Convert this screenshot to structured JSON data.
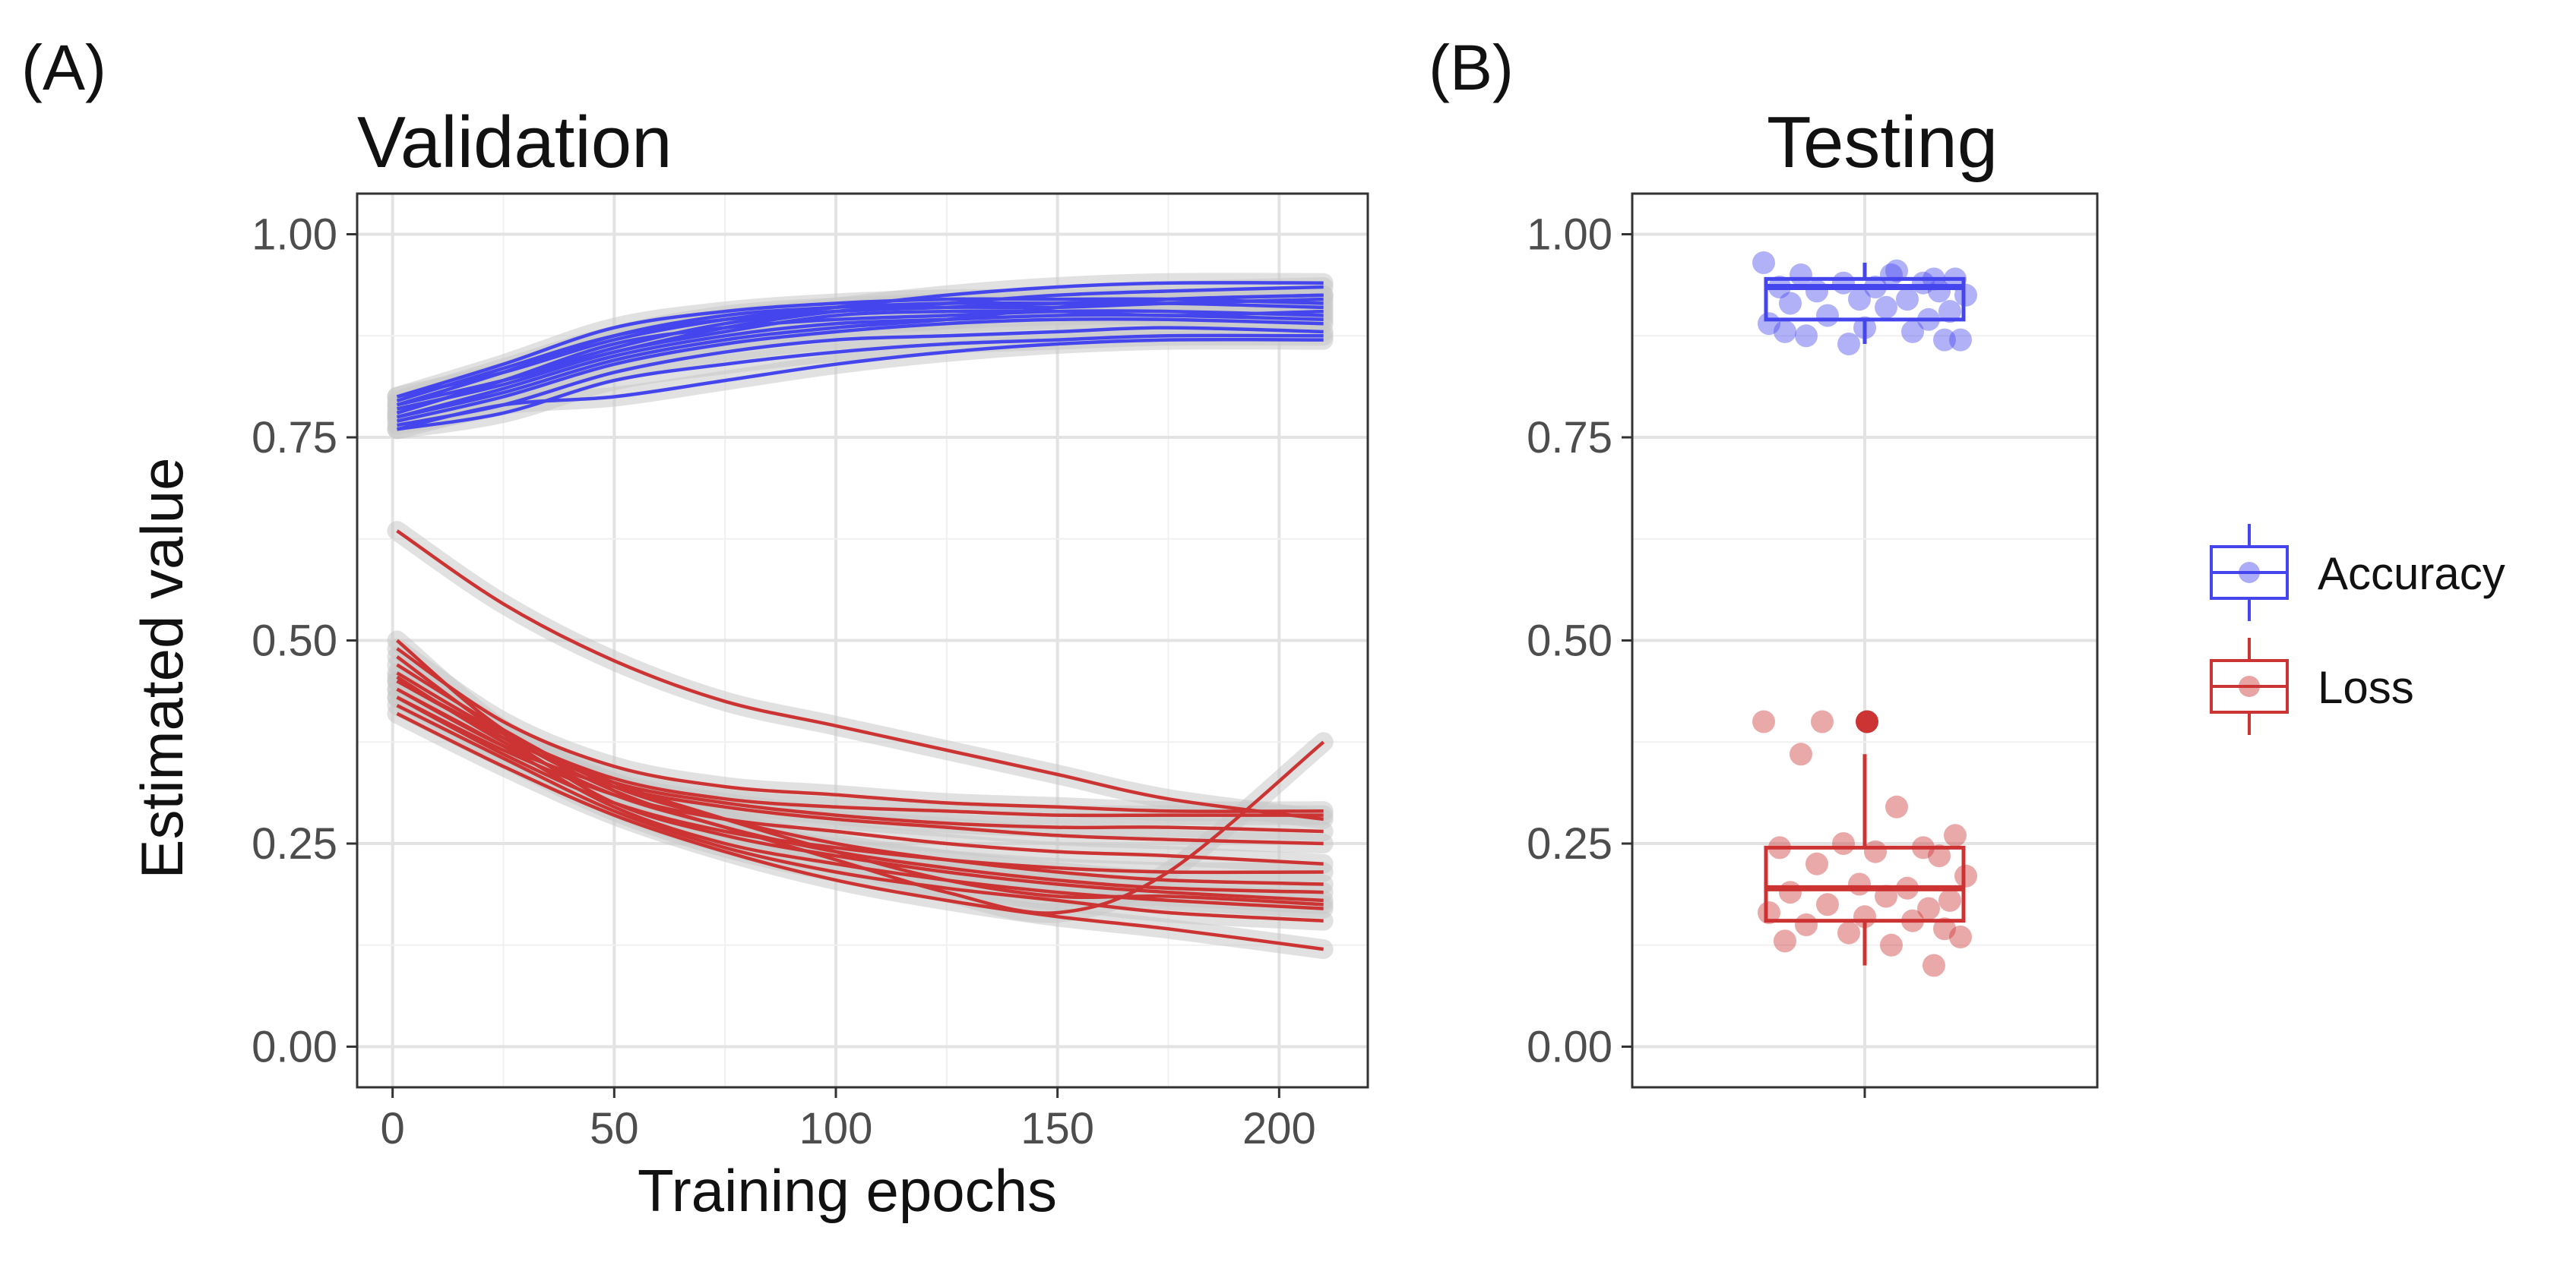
{
  "chart_data": [
    {
      "panel": "(A)",
      "type": "line",
      "title": "Validation",
      "xlabel": "Training epochs",
      "ylabel": "Estimated value",
      "xlim": [
        -8,
        220
      ],
      "ylim": [
        -0.05,
        1.05
      ],
      "x_ticks": [
        "0",
        "50",
        "100",
        "150",
        "200"
      ],
      "y_ticks": [
        "0.00",
        "0.25",
        "0.50",
        "0.75",
        "1.00"
      ],
      "grid": true,
      "x": [
        1,
        25,
        50,
        75,
        100,
        125,
        150,
        175,
        210
      ],
      "series": [
        {
          "group": "Accuracy",
          "values": [
            0.8,
            0.84,
            0.885,
            0.905,
            0.915,
            0.92,
            0.92,
            0.92,
            0.915
          ]
        },
        {
          "group": "Accuracy",
          "values": [
            0.79,
            0.83,
            0.875,
            0.9,
            0.91,
            0.915,
            0.915,
            0.915,
            0.91
          ]
        },
        {
          "group": "Accuracy",
          "values": [
            0.78,
            0.82,
            0.86,
            0.89,
            0.905,
            0.91,
            0.915,
            0.92,
            0.925
          ]
        },
        {
          "group": "Accuracy",
          "values": [
            0.79,
            0.82,
            0.855,
            0.885,
            0.905,
            0.915,
            0.925,
            0.93,
            0.935
          ]
        },
        {
          "group": "Accuracy",
          "values": [
            0.8,
            0.83,
            0.87,
            0.895,
            0.91,
            0.925,
            0.935,
            0.94,
            0.94
          ]
        },
        {
          "group": "Accuracy",
          "values": [
            0.78,
            0.82,
            0.865,
            0.885,
            0.895,
            0.9,
            0.905,
            0.905,
            0.9
          ]
        },
        {
          "group": "Accuracy",
          "values": [
            0.775,
            0.81,
            0.85,
            0.875,
            0.89,
            0.895,
            0.9,
            0.9,
            0.895
          ]
        },
        {
          "group": "Accuracy",
          "values": [
            0.77,
            0.8,
            0.84,
            0.865,
            0.88,
            0.89,
            0.895,
            0.895,
            0.89
          ]
        },
        {
          "group": "Accuracy",
          "values": [
            0.765,
            0.79,
            0.83,
            0.855,
            0.87,
            0.875,
            0.88,
            0.885,
            0.88
          ]
        },
        {
          "group": "Accuracy",
          "values": [
            0.76,
            0.78,
            0.82,
            0.84,
            0.855,
            0.865,
            0.87,
            0.875,
            0.875
          ]
        },
        {
          "group": "Accuracy",
          "values": [
            0.76,
            0.79,
            0.8,
            0.82,
            0.84,
            0.855,
            0.865,
            0.87,
            0.87
          ]
        },
        {
          "group": "Accuracy",
          "values": [
            0.775,
            0.805,
            0.845,
            0.87,
            0.885,
            0.895,
            0.91,
            0.92,
            0.925
          ]
        },
        {
          "group": "Accuracy",
          "values": [
            0.785,
            0.815,
            0.855,
            0.88,
            0.9,
            0.905,
            0.905,
            0.9,
            0.905
          ]
        },
        {
          "group": "Accuracy",
          "values": [
            0.795,
            0.835,
            0.875,
            0.895,
            0.905,
            0.91,
            0.91,
            0.915,
            0.92
          ]
        },
        {
          "group": "Loss",
          "values": [
            0.635,
            0.545,
            0.475,
            0.425,
            0.395,
            0.365,
            0.335,
            0.305,
            0.28
          ]
        },
        {
          "group": "Loss",
          "values": [
            0.49,
            0.4,
            0.345,
            0.32,
            0.31,
            0.3,
            0.295,
            0.29,
            0.29
          ]
        },
        {
          "group": "Loss",
          "values": [
            0.46,
            0.385,
            0.33,
            0.305,
            0.295,
            0.29,
            0.285,
            0.285,
            0.285
          ]
        },
        {
          "group": "Loss",
          "values": [
            0.45,
            0.38,
            0.325,
            0.3,
            0.285,
            0.275,
            0.27,
            0.27,
            0.265
          ]
        },
        {
          "group": "Loss",
          "values": [
            0.44,
            0.37,
            0.32,
            0.295,
            0.28,
            0.27,
            0.26,
            0.255,
            0.25
          ]
        },
        {
          "group": "Loss",
          "values": [
            0.43,
            0.365,
            0.31,
            0.28,
            0.265,
            0.25,
            0.24,
            0.235,
            0.225
          ]
        },
        {
          "group": "Loss",
          "values": [
            0.47,
            0.39,
            0.32,
            0.28,
            0.25,
            0.23,
            0.215,
            0.205,
            0.2
          ]
        },
        {
          "group": "Loss",
          "values": [
            0.45,
            0.38,
            0.3,
            0.26,
            0.235,
            0.215,
            0.2,
            0.19,
            0.18
          ]
        },
        {
          "group": "Loss",
          "values": [
            0.44,
            0.37,
            0.295,
            0.25,
            0.225,
            0.205,
            0.19,
            0.18,
            0.17
          ]
        },
        {
          "group": "Loss",
          "values": [
            0.42,
            0.355,
            0.29,
            0.245,
            0.215,
            0.195,
            0.18,
            0.165,
            0.155
          ]
        },
        {
          "group": "Loss",
          "values": [
            0.41,
            0.345,
            0.285,
            0.24,
            0.205,
            0.18,
            0.16,
            0.145,
            0.12
          ]
        },
        {
          "group": "Loss",
          "values": [
            0.43,
            0.36,
            0.3,
            0.265,
            0.245,
            0.23,
            0.22,
            0.215,
            0.215
          ]
        },
        {
          "group": "Loss",
          "values": [
            0.48,
            0.385,
            0.315,
            0.27,
            0.24,
            0.22,
            0.205,
            0.195,
            0.19
          ]
        },
        {
          "group": "Loss",
          "values": [
            0.5,
            0.39,
            0.325,
            0.28,
            0.24,
            0.205,
            0.185,
            0.185,
            0.175
          ]
        },
        {
          "group": "Loss",
          "values": [
            0.455,
            0.375,
            0.31,
            0.27,
            0.23,
            0.19,
            0.165,
            0.215,
            0.375
          ]
        }
      ]
    },
    {
      "panel": "(B)",
      "type": "scatter",
      "title": "Testing",
      "ylim": [
        -0.05,
        1.05
      ],
      "y_ticks": [
        "0.00",
        "0.25",
        "0.50",
        "0.75",
        "1.00"
      ],
      "grid": true,
      "boxes": [
        {
          "name": "Accuracy",
          "color": "#4545ee",
          "q1": 0.895,
          "median": 0.935,
          "q3": 0.945,
          "whisker_low": 0.865,
          "whisker_high": 0.965,
          "points": [
            0.965,
            0.95,
            0.955,
            0.945,
            0.94,
            0.94,
            0.935,
            0.935,
            0.93,
            0.93,
            0.925,
            0.92,
            0.92,
            0.915,
            0.91,
            0.905,
            0.9,
            0.895,
            0.89,
            0.885,
            0.88,
            0.875,
            0.87,
            0.865,
            0.87,
            0.88,
            0.95,
            0.945
          ]
        },
        {
          "name": "Loss",
          "color": "#cc3333",
          "q1": 0.155,
          "median": 0.195,
          "q3": 0.245,
          "whisker_low": 0.1,
          "whisker_high": 0.36,
          "outliers": [
            0.4
          ],
          "points": [
            0.4,
            0.36,
            0.295,
            0.26,
            0.25,
            0.245,
            0.245,
            0.24,
            0.235,
            0.225,
            0.21,
            0.2,
            0.195,
            0.19,
            0.185,
            0.18,
            0.175,
            0.17,
            0.165,
            0.16,
            0.155,
            0.15,
            0.145,
            0.14,
            0.135,
            0.13,
            0.125,
            0.1,
            0.4
          ]
        }
      ]
    }
  ],
  "legend": {
    "placement": "right",
    "items": [
      {
        "label": "Accuracy",
        "color": "#4545ee"
      },
      {
        "label": "Loss",
        "color": "#cc3333"
      }
    ]
  }
}
